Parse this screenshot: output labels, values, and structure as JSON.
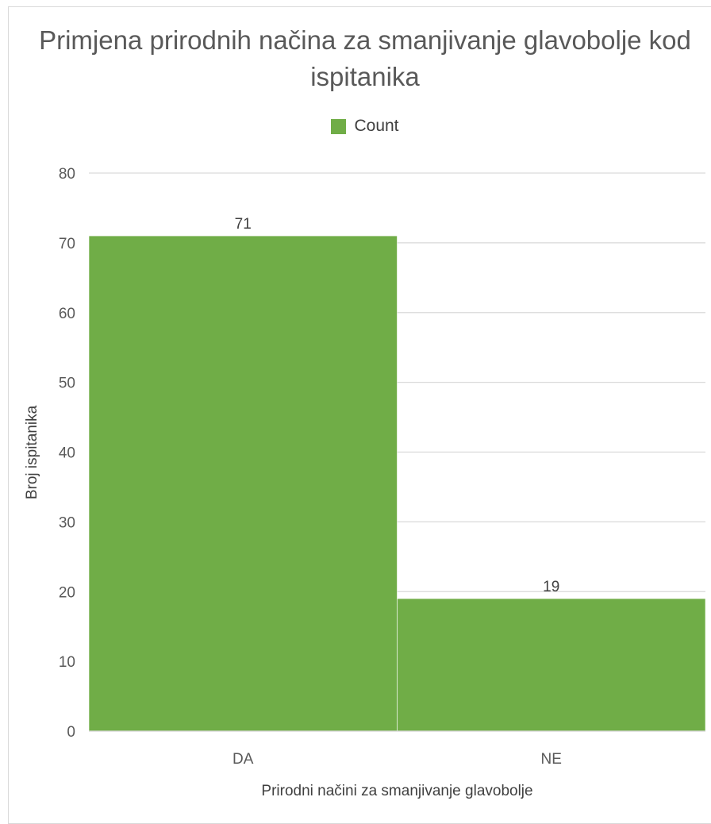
{
  "chart_data": {
    "type": "bar",
    "title": "Primjena prirodnih načina za smanjivanje glavobolje kod ispitanika",
    "categories": [
      "DA",
      "NE"
    ],
    "series": [
      {
        "name": "Count",
        "values": [
          71,
          19
        ],
        "color": "#70ad47"
      }
    ],
    "data_labels": [
      "71",
      "19"
    ],
    "xlabel": "Prirodni načini za smanjivanje glavobolje",
    "ylabel": "Broj ispitanika",
    "ylim": [
      0,
      80
    ],
    "yticks": [
      0,
      10,
      20,
      30,
      40,
      50,
      60,
      70,
      80
    ],
    "grid": true,
    "legend_position": "top"
  }
}
